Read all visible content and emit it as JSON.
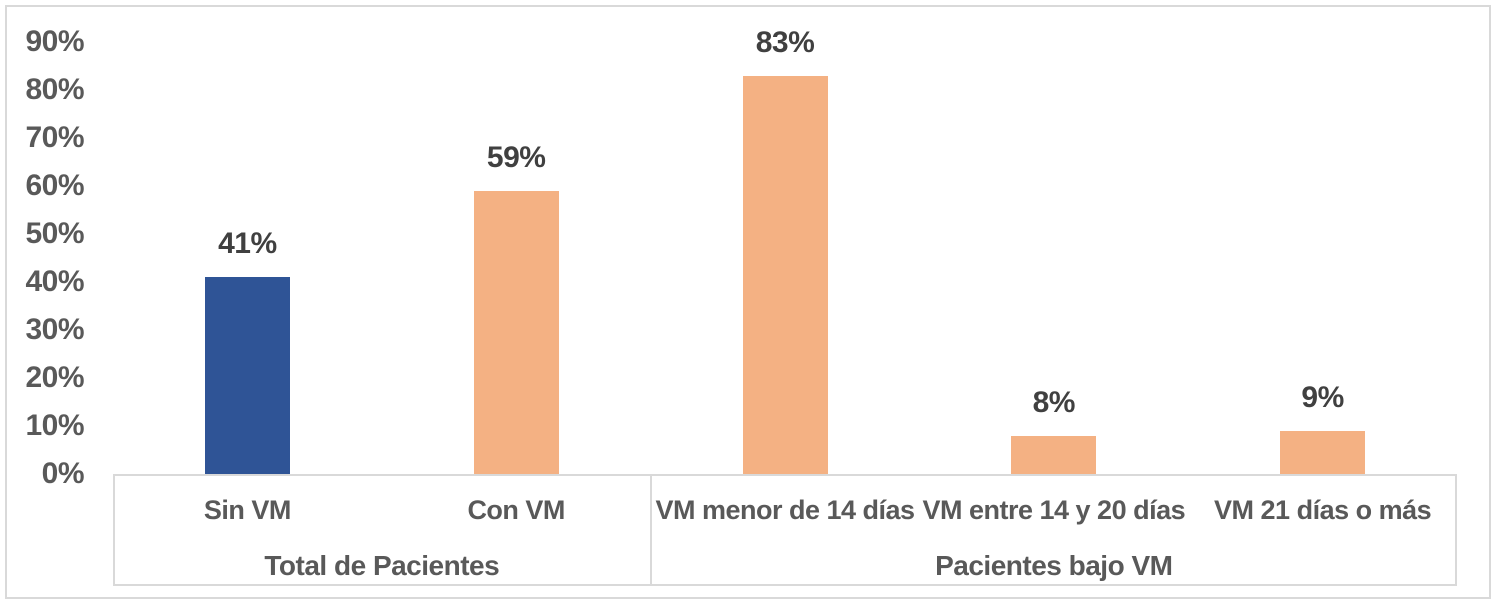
{
  "chart_data": {
    "type": "bar",
    "title": "",
    "xlabel": "",
    "ylabel": "",
    "ylim": [
      0,
      90
    ],
    "grid": false,
    "legend": false,
    "y_ticks": [
      {
        "value": 0,
        "label": "0%"
      },
      {
        "value": 10,
        "label": "10%"
      },
      {
        "value": 20,
        "label": "20%"
      },
      {
        "value": 30,
        "label": "30%"
      },
      {
        "value": 40,
        "label": "40%"
      },
      {
        "value": 50,
        "label": "50%"
      },
      {
        "value": 60,
        "label": "60%"
      },
      {
        "value": 70,
        "label": "70%"
      },
      {
        "value": 80,
        "label": "80%"
      },
      {
        "value": 90,
        "label": "90%"
      }
    ],
    "groups": [
      {
        "label": "Total de Pacientes",
        "categories": [
          "Sin VM",
          "Con VM"
        ],
        "values": [
          41,
          59
        ],
        "data_labels": [
          "41%",
          "59%"
        ],
        "bar_colors": [
          "#2F5496",
          "#F4B183"
        ]
      },
      {
        "label": "Pacientes bajo VM",
        "categories": [
          "VM menor de 14 días",
          "VM entre 14 y 20 días",
          "VM 21 días o más"
        ],
        "values": [
          83,
          8,
          9
        ],
        "data_labels": [
          "83%",
          "8%",
          "9%"
        ],
        "bar_colors": [
          "#F4B183",
          "#F4B183",
          "#F4B183"
        ]
      }
    ]
  },
  "colors": {
    "bar_blue": "#2F5496",
    "bar_orange": "#F4B183",
    "axis_text": "#595959",
    "data_label_text": "#404040",
    "border": "#D9D9D9",
    "background": "#FFFFFF"
  }
}
